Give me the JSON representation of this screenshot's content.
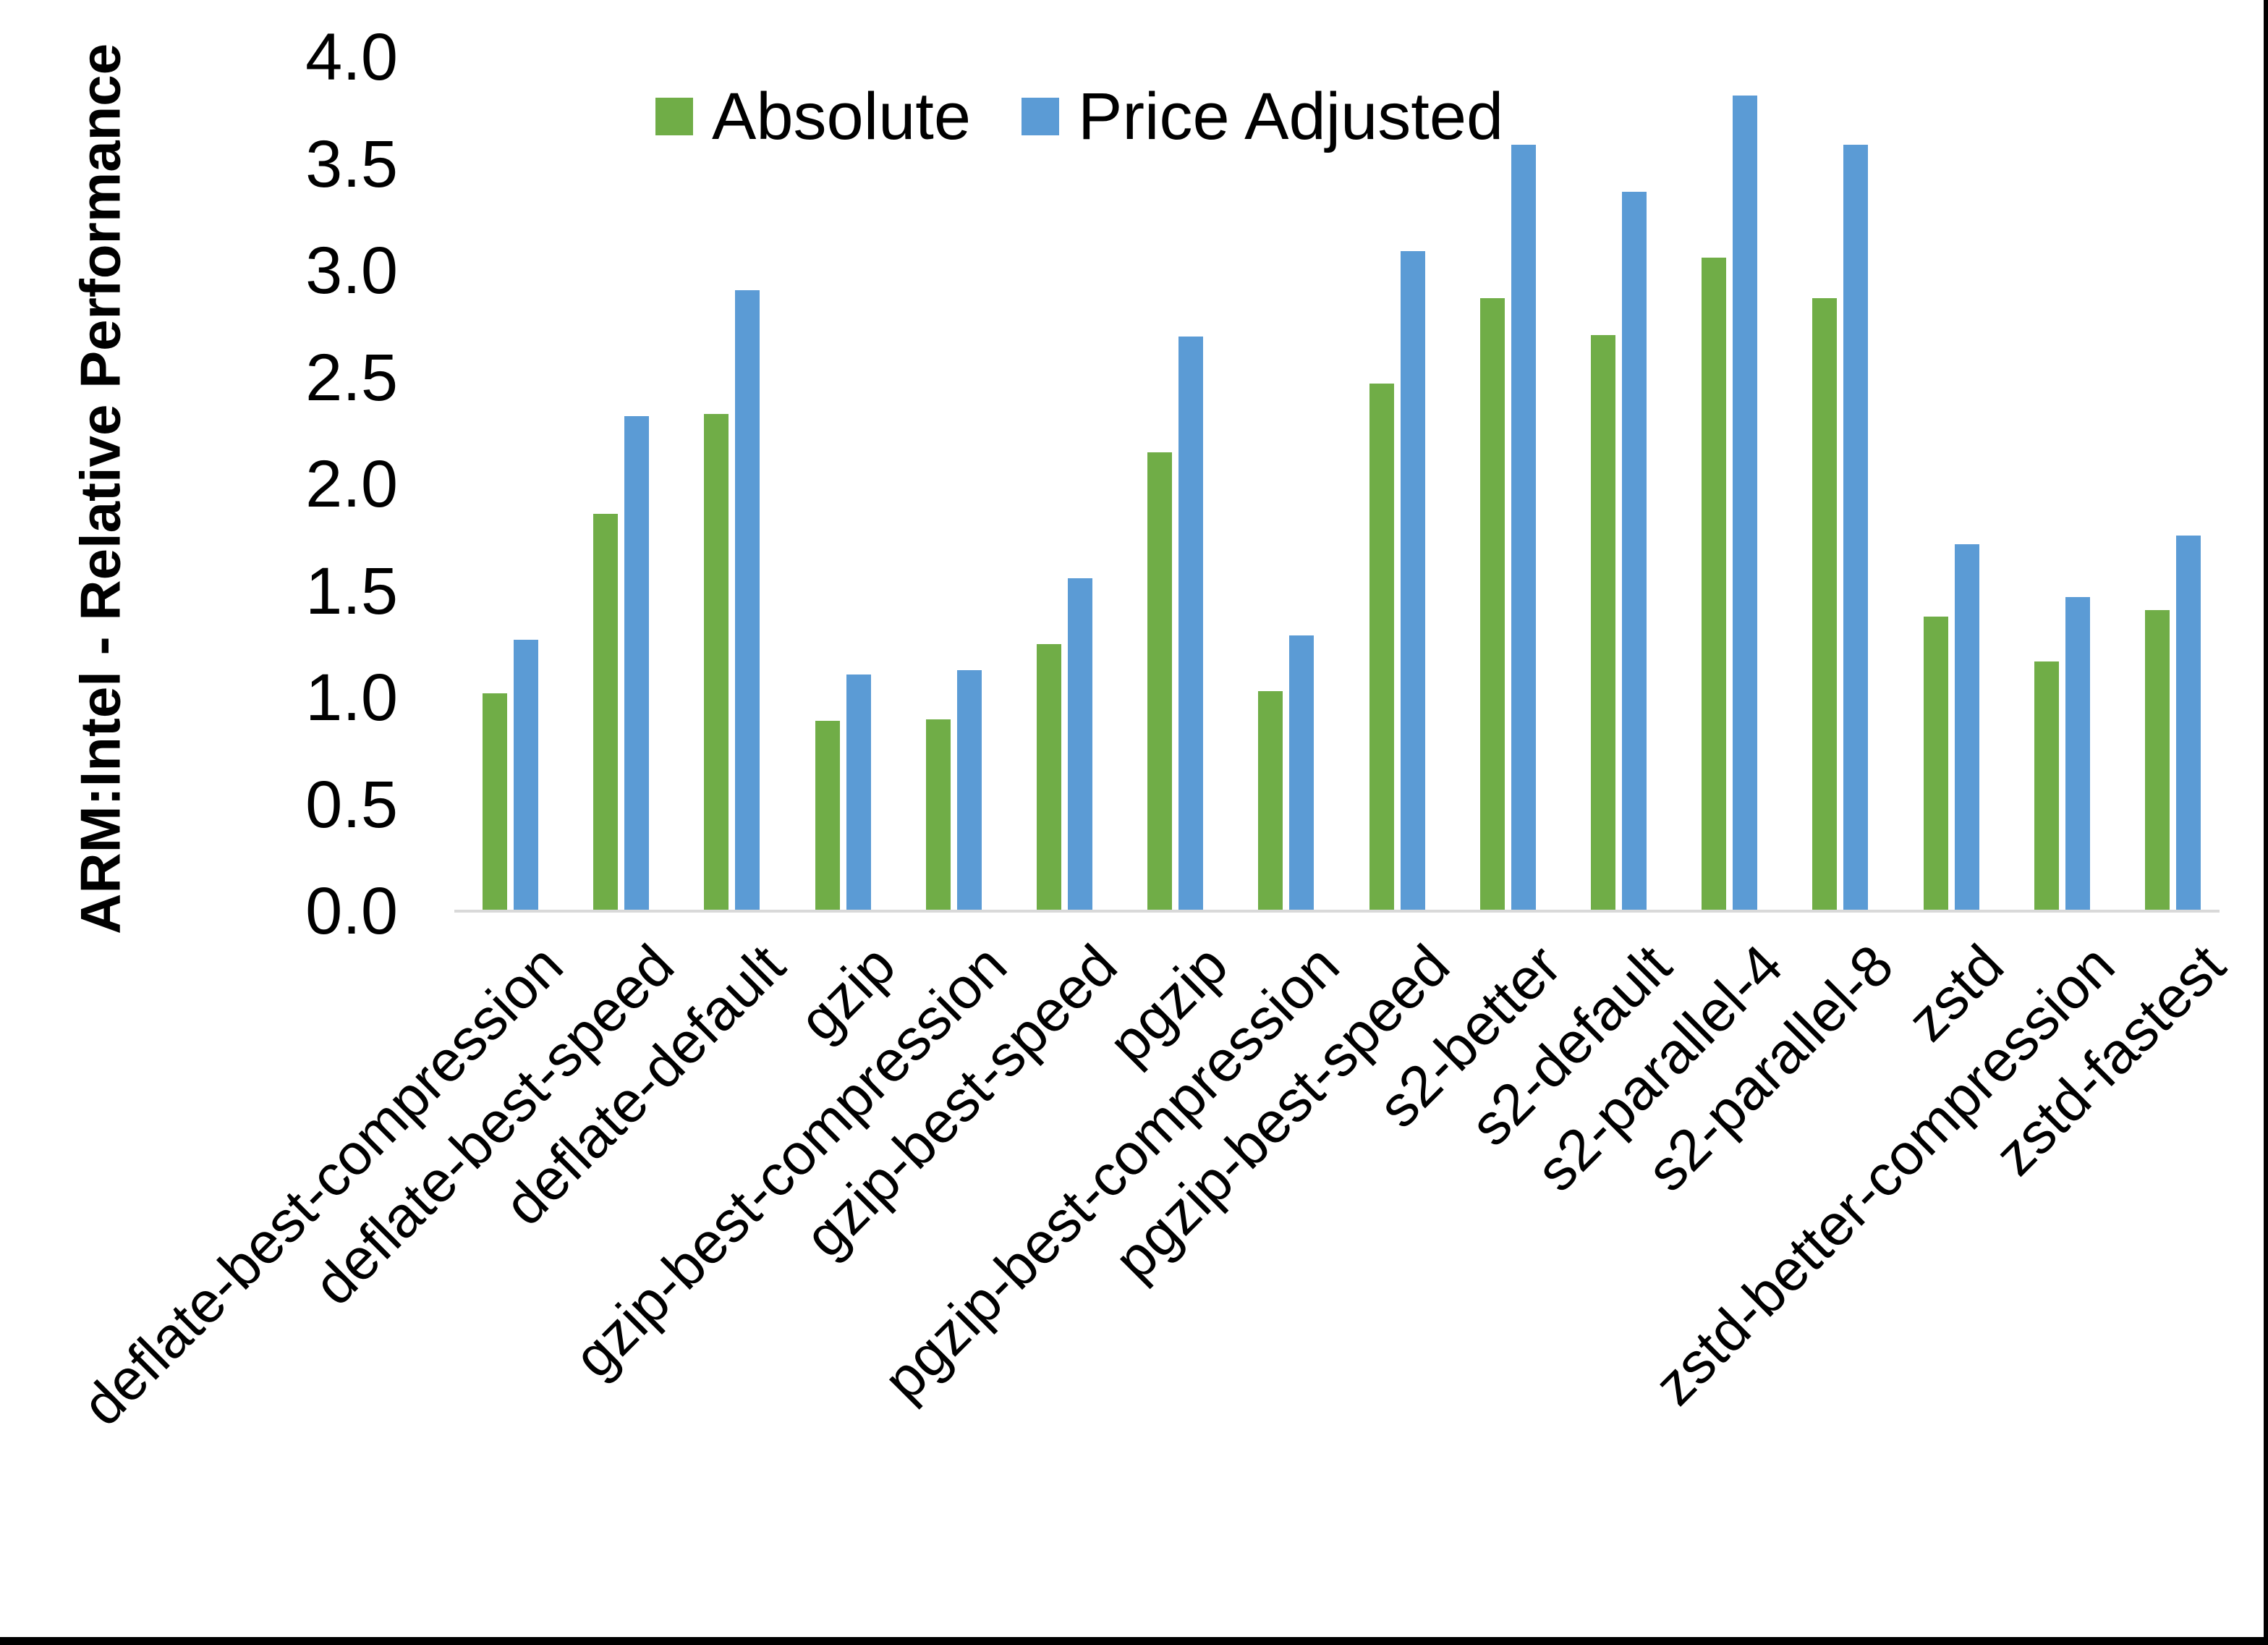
{
  "chart_data": {
    "type": "bar",
    "title": "",
    "xlabel": "",
    "ylabel": "ARM:Intel - Relative Performance",
    "categories": [
      "deflate-best-compression",
      "deflate-best-speed",
      "deflate-default",
      "gzip",
      "gzip-best-compression",
      "gzip-best-speed",
      "pgzip",
      "pgzip-best-compression",
      "pgzip-best-speed",
      "s2-better",
      "s2-default",
      "s2-parallel-4",
      "s2-parallel-8",
      "zstd",
      "zstd-better-compression",
      "zstd-fastest"
    ],
    "series": [
      {
        "name": "Absolute",
        "color": "#70AD47",
        "values": [
          1.02,
          1.86,
          2.33,
          0.89,
          0.9,
          1.25,
          2.15,
          1.03,
          2.47,
          2.87,
          2.7,
          3.06,
          2.87,
          1.38,
          1.17,
          1.41
        ]
      },
      {
        "name": "Price Adjusted",
        "color": "#5B9BD5",
        "values": [
          1.27,
          2.32,
          2.91,
          1.11,
          1.13,
          1.56,
          2.69,
          1.29,
          3.09,
          3.59,
          3.37,
          3.82,
          3.59,
          1.72,
          1.47,
          1.76
        ]
      }
    ],
    "ylim": [
      0,
      4
    ],
    "yticks": [
      "0.0",
      "0.5",
      "1.0",
      "1.5",
      "2.0",
      "2.5",
      "3.0",
      "3.5",
      "4.0"
    ],
    "ytick_step": 0.5,
    "grid": false,
    "legend_position": "top-center",
    "axis_line_color": "#D9D9D9"
  }
}
